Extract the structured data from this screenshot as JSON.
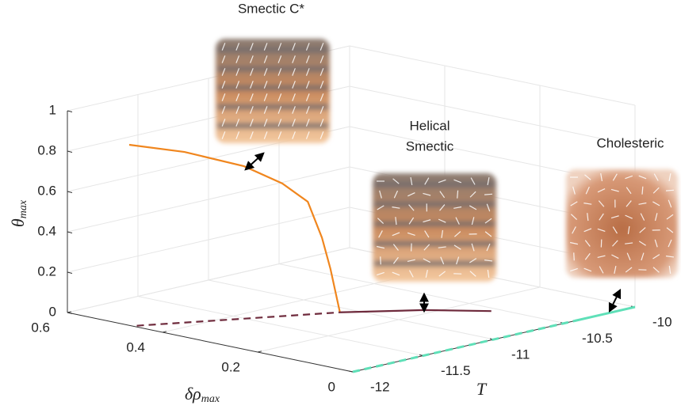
{
  "chart_data": {
    "type": "line3d",
    "xlabel": {
      "symbol": "δρ",
      "subscript": "max"
    },
    "ylabel": "T",
    "zlabel": {
      "symbol": "θ",
      "subscript": "max"
    },
    "xlim": [
      0,
      0.6
    ],
    "xticks": [
      0,
      0.2,
      0.4,
      0.6
    ],
    "ylim": [
      -12,
      -10
    ],
    "yticks": [
      -12,
      -11.5,
      -11,
      -10.5,
      -10
    ],
    "zlim": [
      0,
      1
    ],
    "zticks": [
      0,
      0.2,
      0.4,
      0.6,
      0.8,
      1
    ],
    "grid": true,
    "series": [
      {
        "color": "#f0861e",
        "linestyle": "solid",
        "x": [
          0.47,
          0.425,
          0.377,
          0.347,
          0.326,
          0.314,
          0.308,
          0.3
        ],
        "y": [
          -12,
          -11.76,
          -11.5,
          -11.33,
          -11.22,
          -11.16,
          -11.12,
          -11.08
        ],
        "z": [
          0.895,
          0.843,
          0.754,
          0.656,
          0.558,
          0.376,
          0.218,
          0
        ]
      },
      {
        "color": "#6e2a3c",
        "linestyle": "dashed",
        "x": [
          0.46,
          0.38,
          0.3
        ],
        "y": [
          -11.98,
          -11.53,
          -11.08
        ],
        "z": [
          0,
          0,
          0
        ]
      },
      {
        "color": "#6e2a3c",
        "linestyle": "solid",
        "x": [
          0.3,
          0.218,
          0.139,
          0.006
        ],
        "y": [
          -11.08,
          -10.76,
          -10.55,
          -10.43
        ],
        "z": [
          0,
          0,
          0
        ]
      },
      {
        "color": "#5fe0b8",
        "linestyle": "dashed",
        "x": [
          0,
          0
        ],
        "y": [
          -12,
          -10.43
        ],
        "z": [
          0,
          0
        ]
      },
      {
        "color": "#5fe0b8",
        "linestyle": "solid",
        "x": [
          0,
          0
        ],
        "y": [
          -10.43,
          -10
        ],
        "z": [
          0,
          0
        ]
      }
    ],
    "annotations": [
      {
        "lines": [
          "Smectic C*"
        ]
      },
      {
        "lines": [
          "Helical",
          "Smectic"
        ]
      },
      {
        "lines": [
          "Cholesteric"
        ]
      }
    ]
  }
}
